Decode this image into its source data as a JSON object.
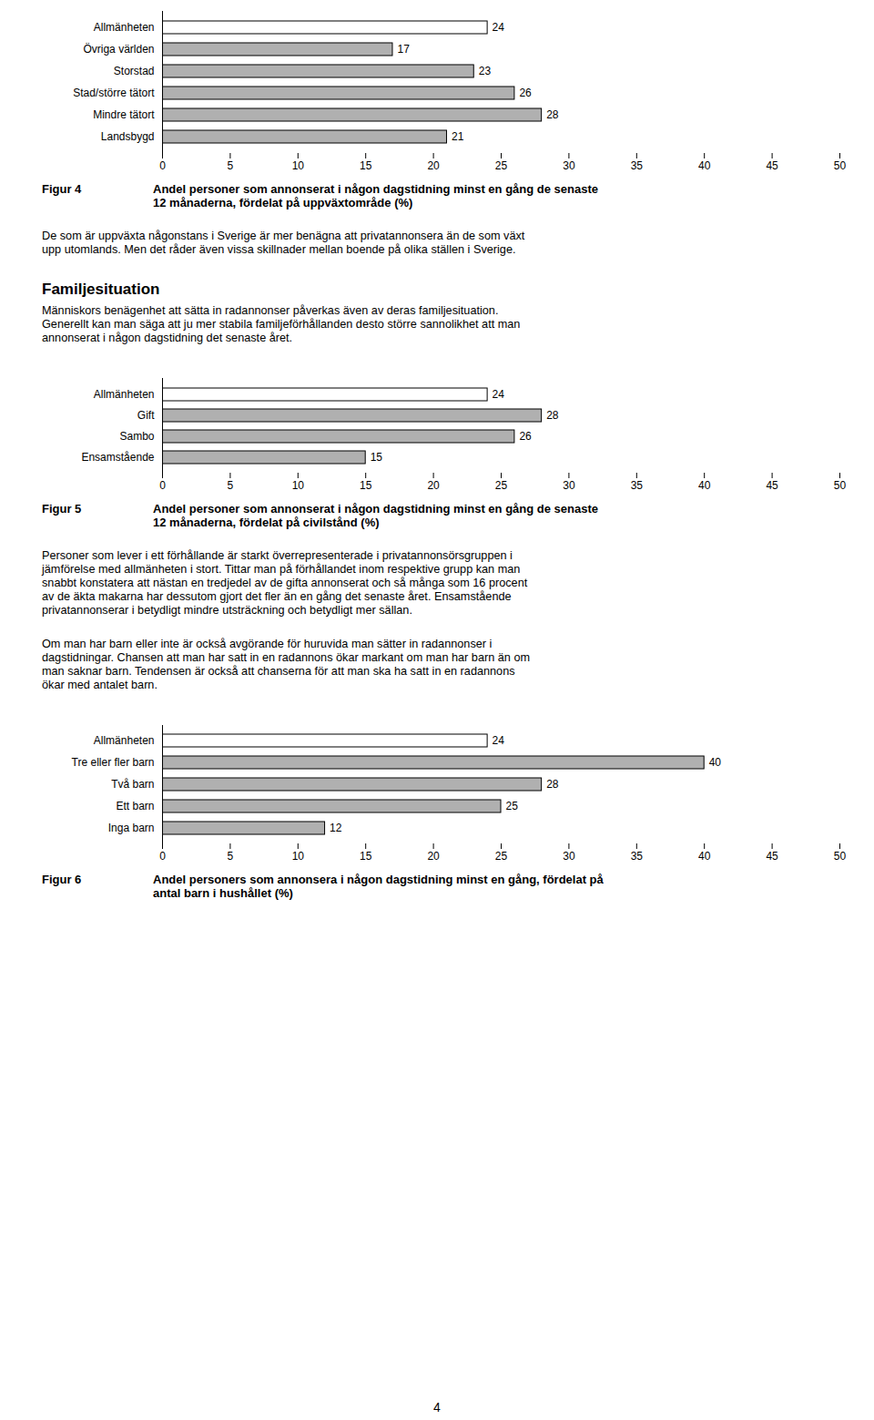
{
  "chart_data": [
    {
      "type": "bar",
      "orientation": "horizontal",
      "title": "Figur 4",
      "subtitle": [
        "Andel personer som annonserat i någon dagstidning minst en gång de senaste",
        "12 månaderna, fördelat på uppväxtområde (%)"
      ],
      "categories": [
        "Allmänheten",
        "Övriga världen",
        "Storstad",
        "Stad/större tätort",
        "Mindre tätort",
        "Landsbygd"
      ],
      "values": [
        24,
        17,
        23,
        26,
        28,
        21
      ],
      "colors": [
        "#ffffff",
        "#b0b0b0",
        "#b0b0b0",
        "#b0b0b0",
        "#b0b0b0",
        "#b0b0b0"
      ],
      "xlim": [
        0,
        50
      ],
      "xticks": [
        0,
        5,
        10,
        15,
        20,
        25,
        30,
        35,
        40,
        45,
        50
      ],
      "data_labels": true,
      "grid": false,
      "annotations": [
        {
          "type": "paragraph",
          "lines": [
            "De som är uppväxta någonstans i Sverige är mer benägna att privatannonsera än de som växt",
            "upp utomlands. Men det råder även vissa skillnader mellan boende på olika ställen i Sverige."
          ]
        },
        {
          "type": "heading",
          "text": "Familjesituation"
        },
        {
          "type": "paragraph",
          "lines": [
            "Människors benägenhet att sätta in radannonser påverkas även av deras familjesituation.",
            "Generellt kan man säga att ju mer stabila familjeförhållanden desto större sannolikhet att man",
            "annonserat i någon dagstidning det senaste året."
          ]
        }
      ]
    },
    {
      "type": "bar",
      "orientation": "horizontal",
      "title": "Figur 5",
      "subtitle": [
        "Andel personer som annonserat i någon dagstidning minst en gång de senaste",
        "12 månaderna, fördelat på civilstånd (%)"
      ],
      "categories": [
        "Allmänheten",
        "Gift",
        "Sambo",
        "Ensamstående"
      ],
      "values": [
        24,
        28,
        26,
        15
      ],
      "colors": [
        "#ffffff",
        "#b0b0b0",
        "#b0b0b0",
        "#b0b0b0"
      ],
      "xlim": [
        0,
        50
      ],
      "xticks": [
        0,
        5,
        10,
        15,
        20,
        25,
        30,
        35,
        40,
        45,
        50
      ],
      "data_labels": true,
      "grid": false,
      "annotations": [
        {
          "type": "paragraph",
          "lines": [
            "Personer som lever i ett förhållande är starkt överrepresenterade i privatannonsörsgruppen i",
            "jämförelse med allmänheten i stort. Tittar man på förhållandet inom respektive grupp kan man",
            "snabbt konstatera att nästan en tredjedel av de gifta annonserat och så många som 16 procent",
            "av de äkta makarna har dessutom gjort det fler än en gång det senaste året. Ensamstående",
            "privatannonserar i betydligt mindre utsträckning och betydligt mer sällan."
          ]
        },
        {
          "type": "paragraph",
          "lines": [
            "Om man har barn eller inte är också avgörande för huruvida man sätter in radannonser i",
            "dagstidningar. Chansen att man har satt in en radannons ökar markant om man har barn än om",
            "man saknar barn. Tendensen är också att chanserna för att man ska ha satt in en radannons",
            "ökar med antalet barn."
          ]
        }
      ]
    },
    {
      "type": "bar",
      "orientation": "horizontal",
      "title": "Figur 6",
      "subtitle": [
        "Andel personers som annonsera i någon dagstidning minst en gång, fördelat på",
        "antal barn i hushållet (%)"
      ],
      "categories": [
        "Allmänheten",
        "Tre eller fler barn",
        "Två barn",
        "Ett barn",
        "Inga barn"
      ],
      "values": [
        24,
        40,
        28,
        25,
        12
      ],
      "colors": [
        "#ffffff",
        "#b0b0b0",
        "#b0b0b0",
        "#b0b0b0",
        "#b0b0b0"
      ],
      "xlim": [
        0,
        50
      ],
      "xticks": [
        0,
        5,
        10,
        15,
        20,
        25,
        30,
        35,
        40,
        45,
        50
      ],
      "data_labels": true,
      "grid": false,
      "annotations": [
        {
          "type": "page_number",
          "text": "4"
        }
      ]
    }
  ]
}
